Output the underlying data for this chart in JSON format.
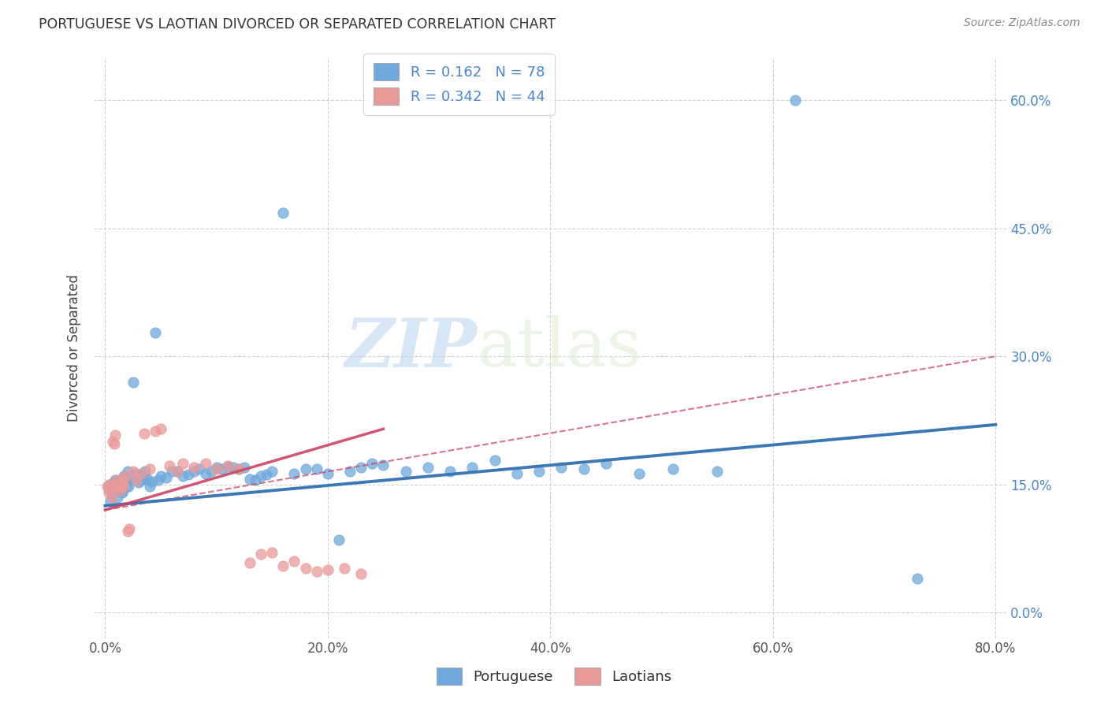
{
  "title": "PORTUGUESE VS LAOTIAN DIVORCED OR SEPARATED CORRELATION CHART",
  "source": "Source: ZipAtlas.com",
  "ylabel": "Divorced or Separated",
  "xlabel_ticks": [
    "0.0%",
    "20.0%",
    "40.0%",
    "60.0%",
    "80.0%"
  ],
  "ylabel_ticks_right": [
    "0.0%",
    "15.0%",
    "30.0%",
    "45.0%",
    "60.0%"
  ],
  "xlim": [
    -1.0,
    81.0
  ],
  "ylim": [
    -3.0,
    65.0
  ],
  "portuguese_R": 0.162,
  "portuguese_N": 78,
  "laotian_R": 0.342,
  "laotian_N": 44,
  "portuguese_color": "#6fa8dc",
  "laotian_color": "#ea9999",
  "trendline_portuguese_color": "#3d78b5",
  "trendline_laotian_color": "#cc4466",
  "legend_label_portuguese": "Portuguese",
  "legend_label_laotian": "Laotians",
  "watermark_zip": "ZIP",
  "watermark_atlas": "atlas",
  "portuguese_x": [
    0.3,
    0.4,
    0.5,
    0.6,
    0.7,
    0.8,
    0.9,
    1.0,
    1.1,
    1.2,
    1.3,
    1.4,
    1.5,
    1.6,
    1.7,
    1.8,
    1.9,
    2.0,
    2.1,
    2.2,
    2.3,
    2.5,
    2.7,
    3.0,
    3.2,
    3.4,
    3.6,
    3.8,
    4.0,
    4.2,
    4.5,
    4.8,
    5.0,
    5.5,
    6.0,
    6.5,
    7.0,
    7.5,
    8.0,
    8.5,
    9.0,
    9.5,
    10.0,
    10.5,
    11.0,
    11.5,
    12.0,
    12.5,
    13.0,
    13.5,
    14.0,
    14.5,
    15.0,
    16.0,
    17.0,
    18.0,
    19.0,
    20.0,
    21.0,
    22.0,
    23.0,
    24.0,
    25.0,
    27.0,
    29.0,
    31.0,
    33.0,
    35.0,
    37.0,
    39.0,
    41.0,
    43.0,
    45.0,
    48.0,
    51.0,
    55.0,
    62.0,
    73.0
  ],
  "portuguese_y": [
    14.5,
    15.0,
    13.0,
    14.0,
    14.8,
    15.2,
    15.5,
    14.5,
    13.5,
    15.0,
    14.8,
    15.5,
    14.0,
    14.3,
    16.0,
    15.8,
    14.8,
    16.5,
    14.8,
    15.5,
    15.8,
    27.0,
    16.3,
    15.2,
    15.5,
    16.0,
    16.5,
    15.6,
    14.8,
    15.3,
    32.8,
    15.5,
    16.0,
    15.8,
    16.5,
    16.5,
    16.0,
    16.2,
    16.5,
    16.8,
    16.3,
    16.5,
    17.0,
    16.8,
    17.1,
    17.0,
    16.8,
    17.0,
    15.6,
    15.5,
    16.0,
    16.2,
    16.5,
    46.8,
    16.3,
    16.8,
    16.8,
    16.3,
    8.5,
    16.5,
    17.0,
    17.5,
    17.3,
    16.5,
    17.0,
    16.5,
    17.0,
    17.8,
    16.3,
    16.5,
    17.0,
    16.8,
    17.5,
    16.3,
    16.8,
    16.5,
    60.0,
    4.0
  ],
  "laotian_x": [
    0.2,
    0.3,
    0.4,
    0.5,
    0.6,
    0.7,
    0.8,
    0.9,
    1.0,
    1.1,
    1.2,
    1.3,
    1.4,
    1.5,
    1.6,
    1.7,
    1.8,
    2.0,
    2.2,
    2.5,
    2.8,
    3.2,
    3.5,
    4.0,
    4.5,
    5.0,
    5.8,
    6.5,
    7.0,
    8.0,
    9.0,
    10.0,
    11.0,
    12.0,
    13.0,
    14.0,
    15.0,
    16.0,
    17.0,
    18.0,
    19.0,
    20.0,
    21.5,
    23.0
  ],
  "laotian_y": [
    14.8,
    14.0,
    15.0,
    14.5,
    13.5,
    20.0,
    19.8,
    20.8,
    15.5,
    15.0,
    14.8,
    14.3,
    14.8,
    15.2,
    15.5,
    14.8,
    16.0,
    9.5,
    9.8,
    16.5,
    15.5,
    16.3,
    21.0,
    16.8,
    21.2,
    21.5,
    17.2,
    16.5,
    17.5,
    17.0,
    17.5,
    16.8,
    17.2,
    16.8,
    5.8,
    6.8,
    7.0,
    5.5,
    6.0,
    5.2,
    4.8,
    5.0,
    5.2,
    4.5
  ],
  "xtick_vals": [
    0,
    20,
    40,
    60,
    80
  ],
  "ytick_vals": [
    0,
    15,
    30,
    45,
    60
  ]
}
